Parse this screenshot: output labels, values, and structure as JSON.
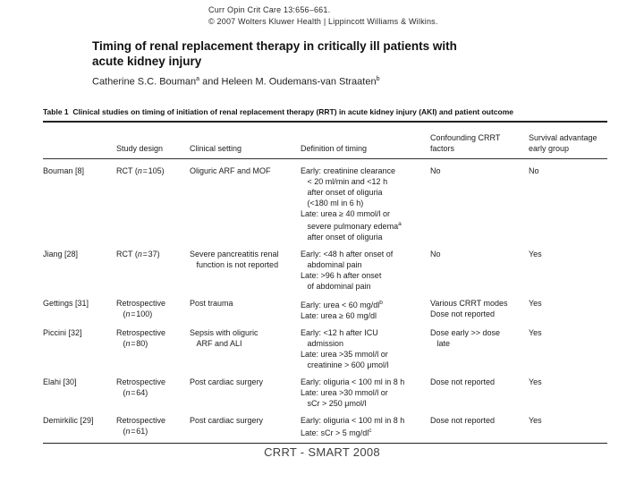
{
  "journal_header": {
    "line1": "Curr Opin Crit Care 13:656–661.",
    "line2": "© 2007 Wolters Kluwer Health | Lippincott Williams & Wilkins."
  },
  "article": {
    "title": "Timing of renal replacement therapy in critically ill patients with\nacute kidney injury",
    "authors": {
      "name1": "Catherine S.C. Bouman",
      "sup1": "a",
      "connector": " and ",
      "name2": "Heleen M. Oudemans-van Straaten",
      "sup2": "b"
    }
  },
  "table": {
    "caption_label": "Table 1",
    "caption_text": "Clinical studies on timing of initiation of renal replacement therapy (RRT) in acute kidney injury (AKI) and patient outcome",
    "columns": [
      "",
      "Study design",
      "Clinical setting",
      "Definition of timing",
      "Confounding CRRT\nfactors",
      "Survival advantage\nearly group"
    ],
    "rows": [
      {
        "study": "Bouman [8]",
        "design": [
          "RCT ({/n} = 105)"
        ],
        "setting": [
          "Oliguric ARF and MOF"
        ],
        "timing": [
          "Early: creatinine clearance",
          "   < 20 ml/min and <12 h",
          "   after onset of oliguria",
          "   (<180 ml in 6 h)",
          "Late: urea ≥ 40 mmol/l or",
          "   severe pulmonary edema{^a}",
          "   after onset of oliguria"
        ],
        "confounding": [
          "No"
        ],
        "survival": [
          "No"
        ]
      },
      {
        "study": "Jiang [28]",
        "design": [
          "RCT ({/n} = 37)"
        ],
        "setting": [
          "Severe pancreatitis renal",
          "   function is not reported"
        ],
        "timing": [
          "Early: <48 h after onset of",
          "   abdominal pain",
          "Late: >96 h after onset",
          "   of abdominal pain"
        ],
        "confounding": [
          "No"
        ],
        "survival": [
          "Yes"
        ]
      },
      {
        "study": "Gettings [31]",
        "design": [
          "Retrospective",
          "   ({/n} = 100)"
        ],
        "setting": [
          "Post trauma"
        ],
        "timing": [
          "Early: urea < 60 mg/dl{^b}",
          "Late: urea ≥ 60 mg/dl"
        ],
        "confounding": [
          "Various CRRT modes",
          "Dose not reported"
        ],
        "survival": [
          "Yes"
        ]
      },
      {
        "study": "Piccini [32]",
        "design": [
          "Retrospective",
          "   ({/n} = 80)"
        ],
        "setting": [
          "Sepsis with oliguric",
          "   ARF and ALI"
        ],
        "timing": [
          "Early: <12 h after ICU",
          "   admission",
          "Late: urea >35 mmol/l or",
          "   creatinine > 600 μmol/l"
        ],
        "confounding": [
          "Dose early >> dose",
          "   late"
        ],
        "survival": [
          "Yes"
        ]
      },
      {
        "study": "Elahi [30]",
        "design": [
          "Retrospective",
          "   ({/n} = 64)"
        ],
        "setting": [
          "Post cardiac surgery"
        ],
        "timing": [
          "Early: oliguria < 100 ml in 8 h",
          "Late: urea >30 mmol/l or",
          "   sCr > 250 μmol/l"
        ],
        "confounding": [
          "Dose not reported"
        ],
        "survival": [
          "Yes"
        ]
      },
      {
        "study": "Demirkilic [29]",
        "design": [
          "Retrospective",
          "   ({/n} = 61)"
        ],
        "setting": [
          "Post cardiac surgery"
        ],
        "timing": [
          "Early: oliguria < 100 ml in 8 h",
          "Late: sCr > 5 mg/dl{^c}"
        ],
        "confounding": [
          "Dose not reported"
        ],
        "survival": [
          "Yes"
        ]
      }
    ]
  },
  "footer": {
    "text": "CRRT - SMART 2008"
  }
}
